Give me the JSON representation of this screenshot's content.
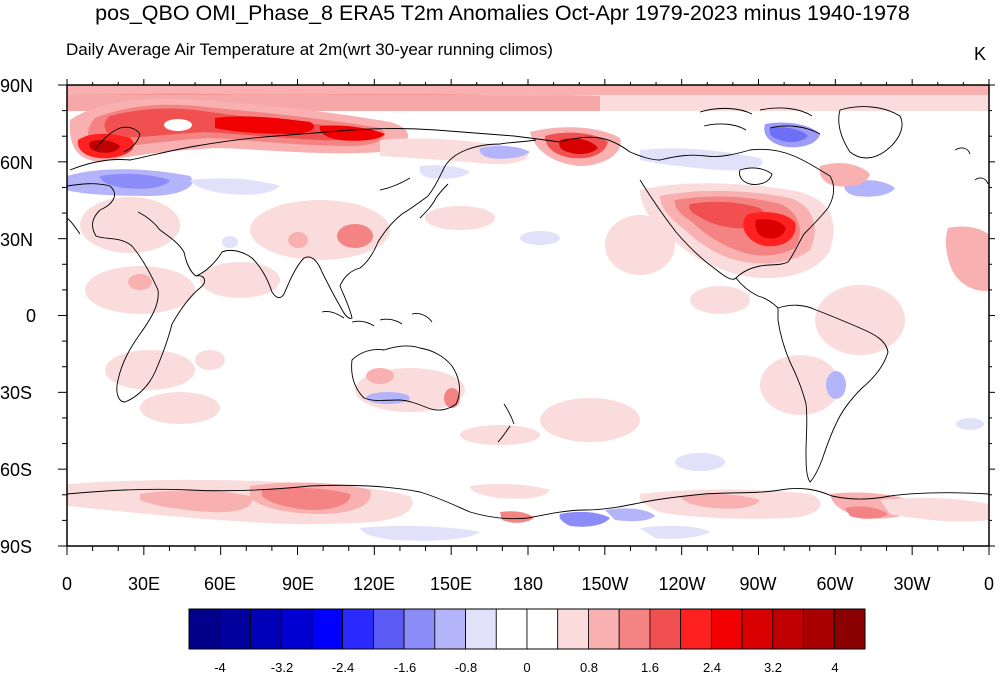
{
  "title": "pos_QBO OMI_Phase_8 ERA5 T2m Anomalies Oct-Apr 1979-2023 minus 1940-1978",
  "subtitle": "Daily Average Air Temperature at 2m(wrt 30-year running climos)",
  "units": "K",
  "lat_labels": [
    "90N",
    "60N",
    "30N",
    "0",
    "30S",
    "60S",
    "90S"
  ],
  "lon_labels": [
    "0",
    "30E",
    "60E",
    "90E",
    "120E",
    "150E",
    "180",
    "150W",
    "120W",
    "90W",
    "60W",
    "30W",
    "0"
  ],
  "colorbar": {
    "colors": [
      "#00008b",
      "#00009c",
      "#0000b8",
      "#0000d2",
      "#0000ff",
      "#2b2bff",
      "#5a5af5",
      "#8c8cf8",
      "#b4b4fa",
      "#e1e1fa",
      "#ffffff",
      "#ffffff",
      "#fadcdc",
      "#f8b0b0",
      "#f48484",
      "#f05050",
      "#ff2020",
      "#f00000",
      "#d80000",
      "#c00000",
      "#a80000",
      "#8b0000"
    ],
    "tick_labels": [
      "-4",
      "-3.2",
      "-2.4",
      "-1.6",
      "-0.8",
      "0",
      "0.8",
      "1.6",
      "2.4",
      "3.2",
      "4"
    ]
  },
  "map": {
    "projection": "cylindrical-equidistant",
    "central_longitude": 180,
    "lon_range": [
      0,
      360
    ],
    "lat_range": [
      -90,
      90
    ]
  }
}
